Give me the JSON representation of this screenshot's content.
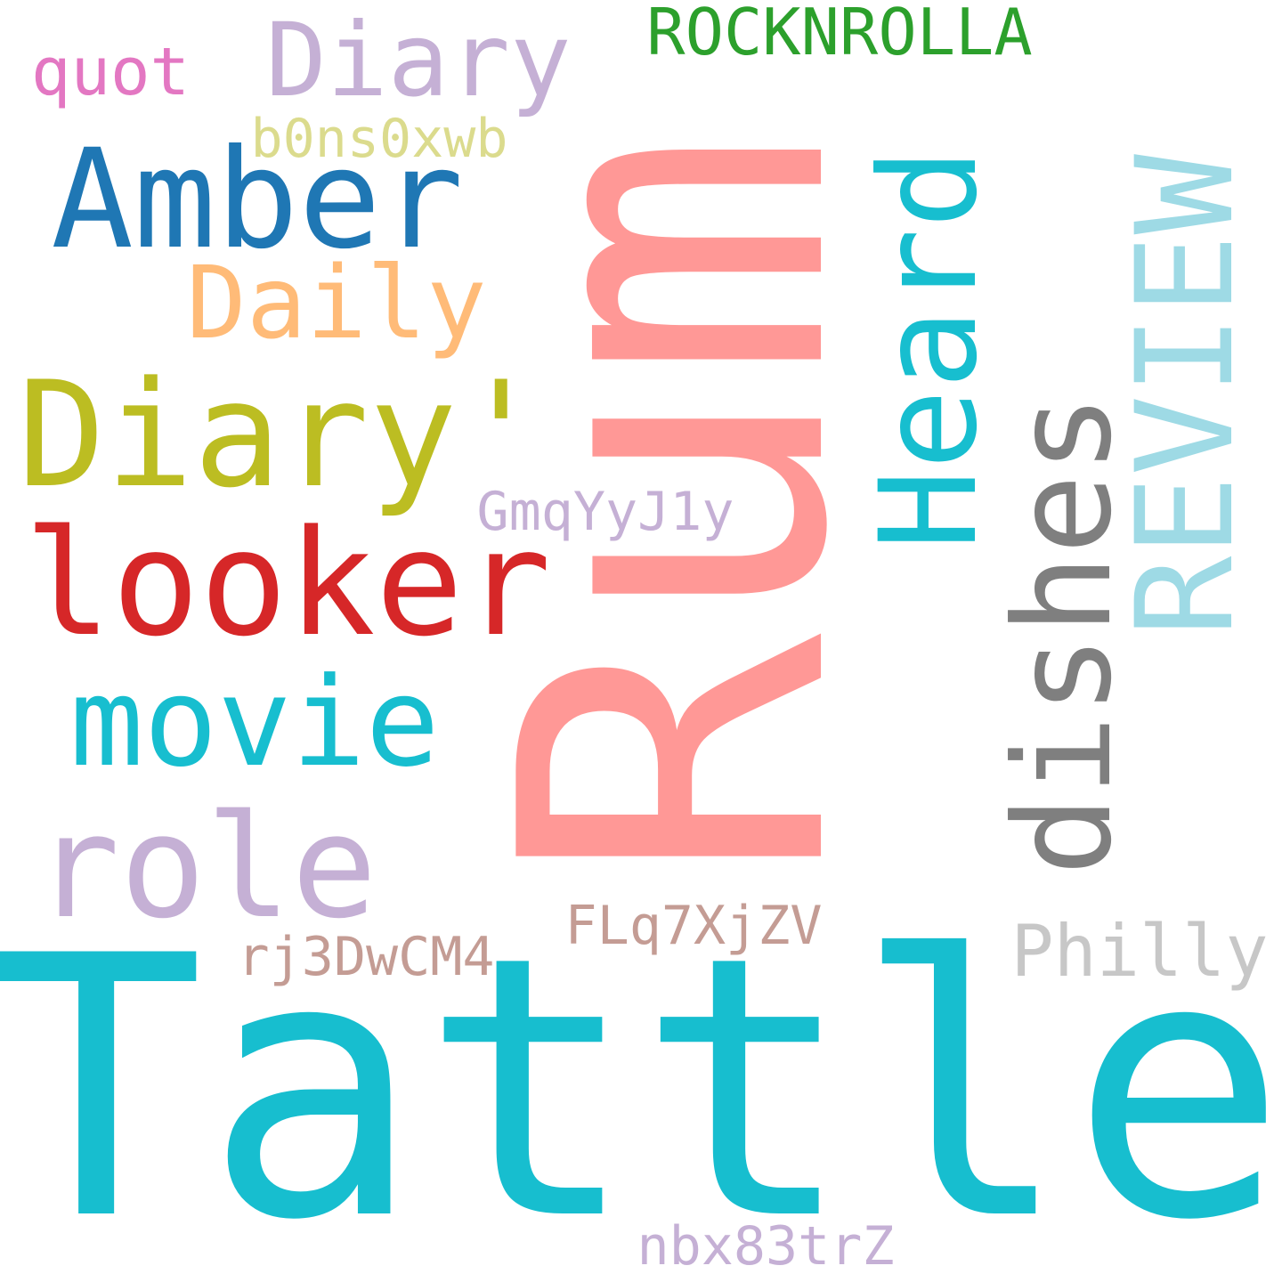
{
  "words": [
    {
      "id": "tattle",
      "text": "Tattle",
      "color": "#17becf"
    },
    {
      "id": "rum",
      "text": "Rum",
      "color": "#ff9896"
    },
    {
      "id": "looker",
      "text": "looker",
      "color": "#d62728"
    },
    {
      "id": "diary-quote",
      "text": "Diary'",
      "color": "#bcbd22"
    },
    {
      "id": "amber",
      "text": "Amber",
      "color": "#1f77b4"
    },
    {
      "id": "movie",
      "text": "movie",
      "color": "#17becf"
    },
    {
      "id": "role",
      "text": "role",
      "color": "#c5b0d5"
    },
    {
      "id": "heard",
      "text": "Heard",
      "color": "#17becf"
    },
    {
      "id": "dishes",
      "text": "dishes",
      "color": "#7f7f7f"
    },
    {
      "id": "review",
      "text": "REVIEW",
      "color": "#9edae5"
    },
    {
      "id": "diary",
      "text": "Diary",
      "color": "#c5b0d5"
    },
    {
      "id": "daily",
      "text": "Daily",
      "color": "#ffbb78"
    },
    {
      "id": "rocknrolla",
      "text": "ROCKNROLLA",
      "color": "#2ca02c"
    },
    {
      "id": "quot",
      "text": "quot",
      "color": "#e377c2"
    },
    {
      "id": "b0ns0xwb",
      "text": "b0ns0xwb",
      "color": "#dbdb8d"
    },
    {
      "id": "gmqyyj1y",
      "text": "GmqYyJ1y",
      "color": "#c5b0d5"
    },
    {
      "id": "flq7xjzv",
      "text": "FLq7XjZV",
      "color": "#c49c94"
    },
    {
      "id": "rj3dwcm4",
      "text": "rj3DwCM4",
      "color": "#c49c94"
    },
    {
      "id": "philly",
      "text": "Philly",
      "color": "#c7c7c7"
    },
    {
      "id": "nbx83trz",
      "text": "nbx83trZ",
      "color": "#c5b0d5"
    }
  ]
}
